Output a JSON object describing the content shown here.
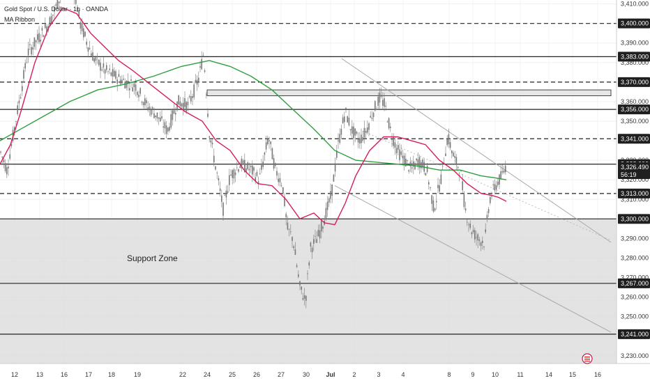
{
  "header": {
    "symbol_line": "Gold Spot / U.S. Dollar · 1h · OANDA",
    "indicator": "MA Ribbon"
  },
  "colors": {
    "candle": "#777777",
    "ma_fast": "#d81b5a",
    "ma_slow": "#2e9e3e",
    "level_line": "#222222",
    "badge_bg": "#1f1f1f",
    "support_fill": "#d9d9d9",
    "channel_line": "#aaaaaa"
  },
  "chart_data": {
    "type": "line",
    "title": "",
    "y_range": [
      3226,
      3412
    ],
    "y_ticks": [
      "3,410.000",
      "3,400.000",
      "3,390.000",
      "3,380.000",
      "3,370.000",
      "3,360.000",
      "3,350.000",
      "3,340.000",
      "3,330.000",
      "3,320.000",
      "3,310.000",
      "3,300.000",
      "3,290.000",
      "3,280.000",
      "3,270.000",
      "3,260.000",
      "3,250.000",
      "3,240.000",
      "3,230.000"
    ],
    "y_tick_values": [
      3410,
      3400,
      3390,
      3380,
      3370,
      3360,
      3350,
      3340,
      3330,
      3320,
      3310,
      3300,
      3290,
      3280,
      3270,
      3260,
      3250,
      3240,
      3230
    ],
    "x_range": [
      0,
      932
    ],
    "x_labels": [
      "12",
      "13",
      "16",
      "17",
      "18",
      "19",
      "22",
      "24",
      "25",
      "26",
      "27",
      "30",
      "Jul",
      "2",
      "3",
      "4",
      "8",
      "9",
      "10",
      "11",
      "14",
      "15",
      "16"
    ],
    "x_label_pos": [
      21,
      57,
      92,
      127,
      160,
      197,
      262,
      297,
      333,
      368,
      403,
      439,
      474,
      508,
      543,
      578,
      644,
      678,
      710,
      746,
      787,
      821,
      857
    ],
    "price_levels": [
      {
        "label": "3,400.000",
        "value": 3400,
        "style": "dashed"
      },
      {
        "label": "3,383.000",
        "value": 3383,
        "style": "solid"
      },
      {
        "label": "3,370.000",
        "value": 3370,
        "style": "dashed"
      },
      {
        "label": "3,356.000",
        "value": 3356,
        "style": "solid"
      },
      {
        "label": "3,341.000",
        "value": 3341,
        "style": "dashed"
      },
      {
        "label": "3,328.000",
        "value": 3328,
        "style": "solid"
      },
      {
        "label": "3,313.000",
        "value": 3313,
        "style": "dashed"
      },
      {
        "label": "3,300.000",
        "value": 3300,
        "style": "solid"
      },
      {
        "label": "3,267.000",
        "value": 3267,
        "style": "solid"
      },
      {
        "label": "3,241.000",
        "value": 3241,
        "style": "solid"
      }
    ],
    "current_price": {
      "value": 3326.49,
      "label": "3,326.490",
      "countdown": "56:19"
    },
    "support_zone": {
      "label": "Support Zone",
      "top": 3300,
      "bottom": 3226
    },
    "resistance_box": {
      "top": 3366,
      "bottom": 3363,
      "x_start": 297,
      "x_end": 876
    },
    "channel": {
      "upper": [
        [
          490,
          3382
        ],
        [
          876,
          3288
        ]
      ],
      "lower": [
        [
          480,
          3317
        ],
        [
          876,
          3242
        ]
      ],
      "mid_dotted": [
        [
          520,
          3345
        ],
        [
          876,
          3289
        ]
      ]
    },
    "series": [
      {
        "key": "price",
        "points": [
          [
            0,
            3335
          ],
          [
            10,
            3325
          ],
          [
            20,
            3345
          ],
          [
            30,
            3365
          ],
          [
            40,
            3385
          ],
          [
            50,
            3390
          ],
          [
            60,
            3395
          ],
          [
            70,
            3400
          ],
          [
            80,
            3408
          ],
          [
            92,
            3420
          ],
          [
            105,
            3420
          ],
          [
            115,
            3400
          ],
          [
            125,
            3390
          ],
          [
            135,
            3382
          ],
          [
            150,
            3376
          ],
          [
            165,
            3373
          ],
          [
            180,
            3370
          ],
          [
            195,
            3368
          ],
          [
            210,
            3358
          ],
          [
            225,
            3353
          ],
          [
            240,
            3345
          ],
          [
            255,
            3360
          ],
          [
            270,
            3358
          ],
          [
            285,
            3372
          ],
          [
            292,
            3385
          ],
          [
            300,
            3345
          ],
          [
            310,
            3325
          ],
          [
            320,
            3305
          ],
          [
            330,
            3322
          ],
          [
            345,
            3328
          ],
          [
            360,
            3325
          ],
          [
            372,
            3320
          ],
          [
            385,
            3342
          ],
          [
            395,
            3325
          ],
          [
            405,
            3318
          ],
          [
            412,
            3295
          ],
          [
            420,
            3290
          ],
          [
            430,
            3265
          ],
          [
            438,
            3258
          ],
          [
            445,
            3285
          ],
          [
            455,
            3290
          ],
          [
            465,
            3300
          ],
          [
            475,
            3312
          ],
          [
            485,
            3338
          ],
          [
            495,
            3355
          ],
          [
            505,
            3345
          ],
          [
            515,
            3340
          ],
          [
            525,
            3345
          ],
          [
            535,
            3355
          ],
          [
            545,
            3362
          ],
          [
            552,
            3358
          ],
          [
            560,
            3345
          ],
          [
            570,
            3335
          ],
          [
            580,
            3330
          ],
          [
            590,
            3325
          ],
          [
            600,
            3330
          ],
          [
            612,
            3325
          ],
          [
            622,
            3305
          ],
          [
            632,
            3320
          ],
          [
            642,
            3342
          ],
          [
            652,
            3330
          ],
          [
            660,
            3325
          ],
          [
            667,
            3305
          ],
          [
            675,
            3295
          ],
          [
            685,
            3290
          ],
          [
            695,
            3288
          ],
          [
            702,
            3310
          ],
          [
            712,
            3318
          ],
          [
            720,
            3322
          ],
          [
            726,
            3328
          ]
        ]
      },
      {
        "key": "ma_fast",
        "points": [
          [
            0,
            3328
          ],
          [
            15,
            3338
          ],
          [
            30,
            3355
          ],
          [
            50,
            3380
          ],
          [
            70,
            3398
          ],
          [
            90,
            3408
          ],
          [
            110,
            3405
          ],
          [
            130,
            3395
          ],
          [
            150,
            3388
          ],
          [
            170,
            3381
          ],
          [
            190,
            3376
          ],
          [
            215,
            3369
          ],
          [
            240,
            3362
          ],
          [
            265,
            3355
          ],
          [
            290,
            3350
          ],
          [
            310,
            3340
          ],
          [
            330,
            3335
          ],
          [
            350,
            3325
          ],
          [
            370,
            3318
          ],
          [
            390,
            3317
          ],
          [
            410,
            3310
          ],
          [
            430,
            3300
          ],
          [
            450,
            3303
          ],
          [
            465,
            3298
          ],
          [
            480,
            3297
          ],
          [
            495,
            3308
          ],
          [
            510,
            3322
          ],
          [
            530,
            3335
          ],
          [
            550,
            3342
          ],
          [
            570,
            3342
          ],
          [
            590,
            3340
          ],
          [
            610,
            3338
          ],
          [
            630,
            3330
          ],
          [
            650,
            3325
          ],
          [
            670,
            3318
          ],
          [
            690,
            3313
          ],
          [
            705,
            3312
          ],
          [
            715,
            3311
          ],
          [
            726,
            3309
          ]
        ]
      },
      {
        "key": "ma_slow",
        "points": [
          [
            0,
            3340
          ],
          [
            30,
            3346
          ],
          [
            60,
            3352
          ],
          [
            100,
            3360
          ],
          [
            140,
            3366
          ],
          [
            180,
            3369
          ],
          [
            220,
            3373
          ],
          [
            260,
            3378
          ],
          [
            300,
            3381
          ],
          [
            330,
            3378
          ],
          [
            360,
            3373
          ],
          [
            390,
            3366
          ],
          [
            420,
            3356
          ],
          [
            450,
            3346
          ],
          [
            480,
            3335
          ],
          [
            510,
            3330
          ],
          [
            540,
            3329
          ],
          [
            570,
            3328
          ],
          [
            600,
            3327
          ],
          [
            630,
            3325
          ],
          [
            660,
            3325
          ],
          [
            690,
            3322
          ],
          [
            710,
            3321
          ],
          [
            726,
            3320
          ]
        ]
      }
    ]
  }
}
